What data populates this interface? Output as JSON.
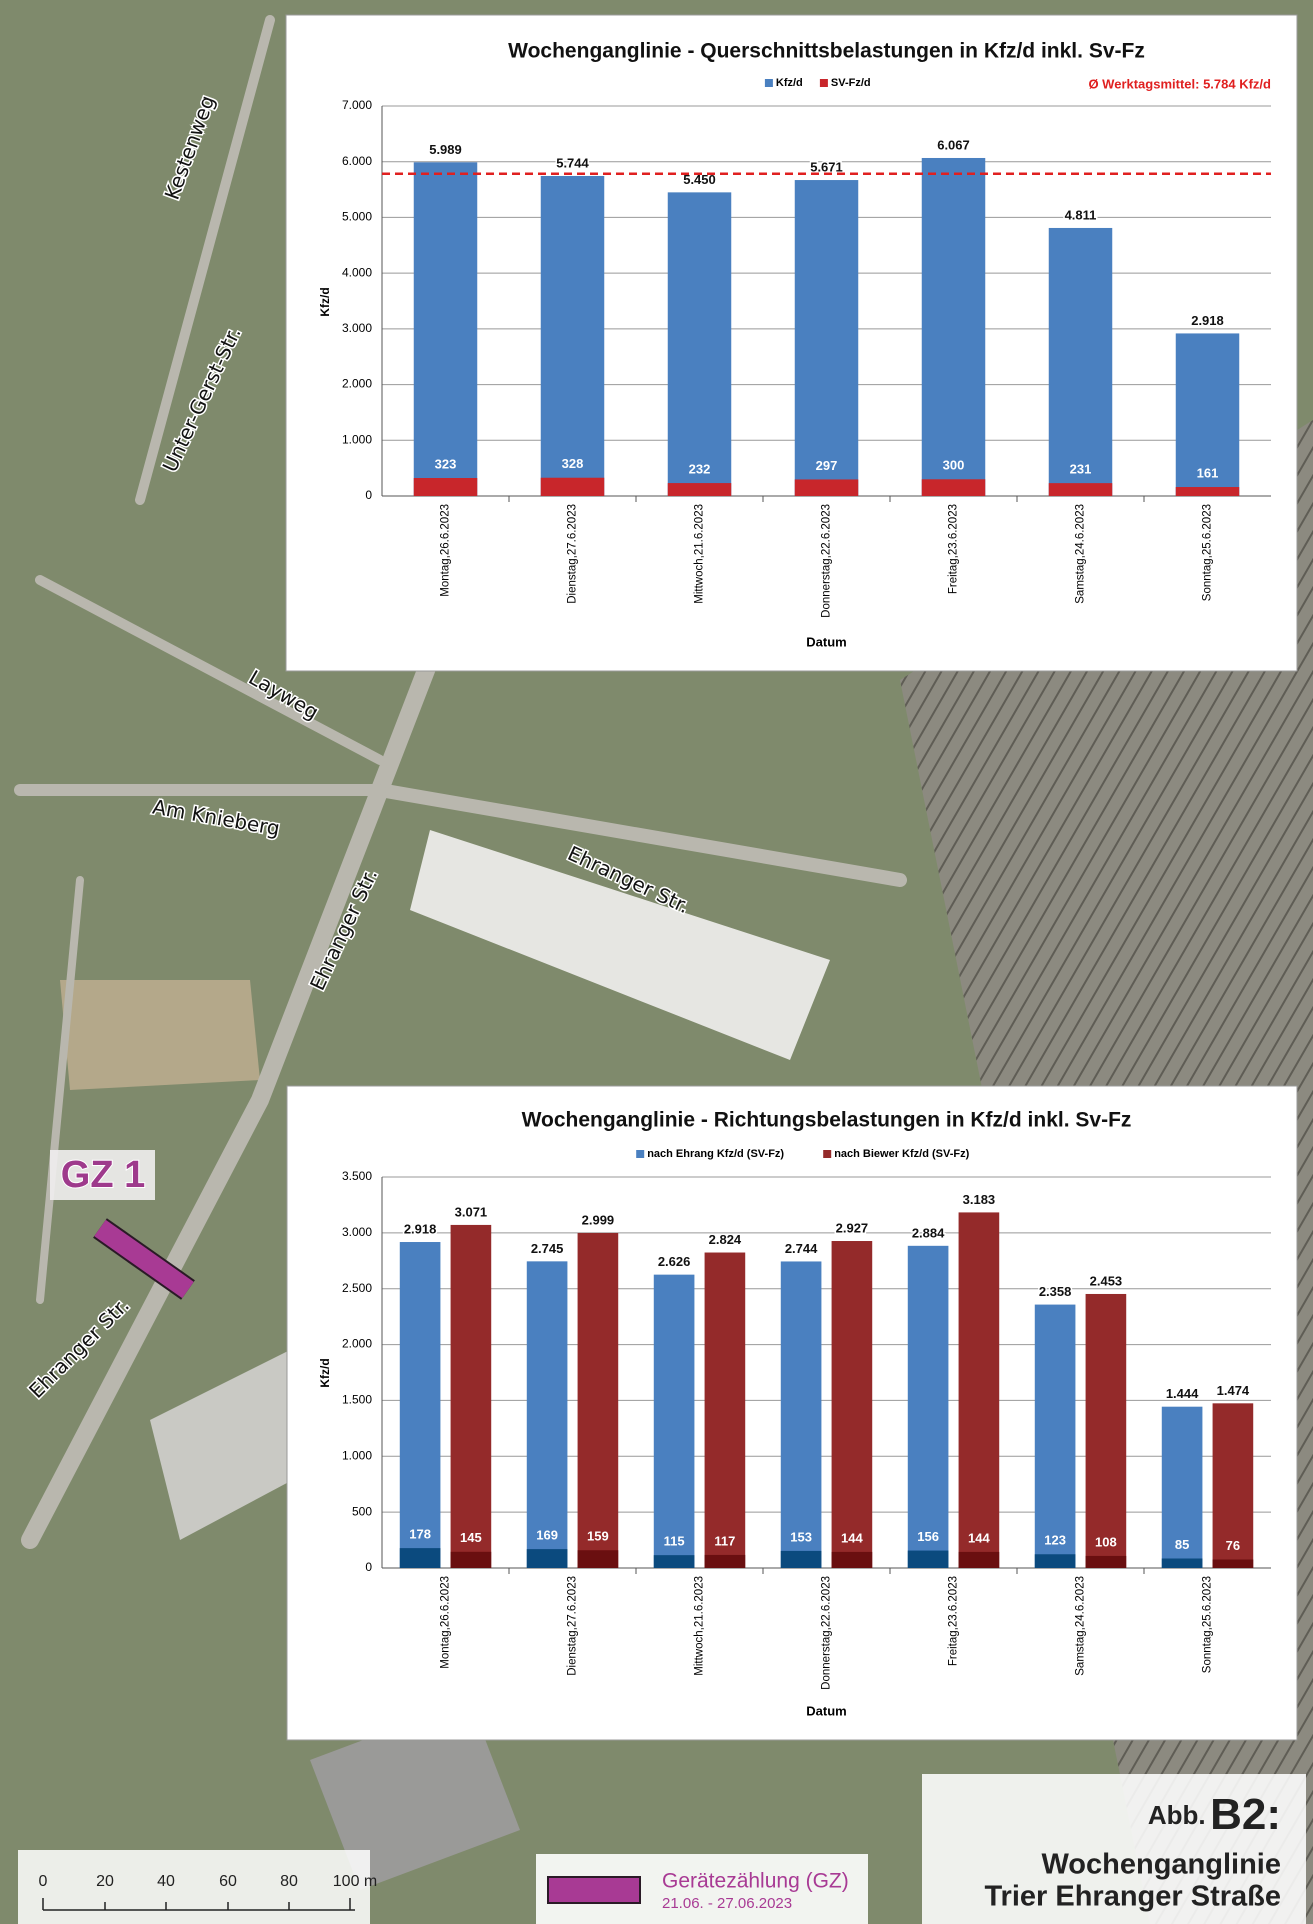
{
  "map": {
    "street_labels": [
      "Kestenweg",
      "Unter-Gerst-Str.",
      "Layweg",
      "Am Knieberg",
      "Ehranger Str.",
      "Ehranger Str.",
      "Ehranger Str."
    ],
    "gz_label": "GZ 1",
    "scale_labels": [
      "0",
      "20",
      "40",
      "60",
      "80",
      "100 m"
    ],
    "legend": {
      "label": "Gerätezählung (GZ)",
      "dates": "21.06. - 27.06.2023"
    },
    "figure": {
      "prefix": "Abb.",
      "number": "B2:",
      "title_lines": [
        "Wochenganglinie",
        "Trier Ehranger Straße"
      ]
    }
  },
  "chart_data": [
    {
      "type": "bar",
      "title": "Wochenganglinie - Querschnittsbelastungen in Kfz/d inkl. Sv-Fz",
      "y_label": "Kfz/d",
      "x_label": "Datum",
      "categories": [
        "Montag,26.6.2023",
        "Dienstag,27.6.2023",
        "Mittwoch,21.6.2023",
        "Donnerstag,22.6.2023",
        "Freitag,23.6.2023",
        "Samstag,24.6.2023",
        "Sonntag,25.6.2023"
      ],
      "series": [
        {
          "name": "Kfz/d",
          "color": "#4a80c0",
          "values": [
            5989,
            5744,
            5450,
            5671,
            6067,
            4811,
            2918
          ],
          "value_labels": [
            "5.989",
            "5.744",
            "5.450",
            "5.671",
            "6.067",
            "4.811",
            "2.918"
          ]
        },
        {
          "name": "SV-Fz/d",
          "color": "#c8262b",
          "overlay": true,
          "values": [
            323,
            328,
            232,
            297,
            300,
            231,
            161
          ]
        }
      ],
      "reference_line": {
        "value": 5784,
        "label": "Ø Werktagsmittel: 5.784 Kfz/d",
        "color": "#e02020"
      },
      "ylim": [
        0,
        7000
      ],
      "yticks": [
        0,
        {
          "value": 1000,
          "label": "1.000"
        },
        {
          "value": 2000,
          "label": "2.000"
        },
        {
          "value": 3000,
          "label": "3.000"
        },
        {
          "value": 4000,
          "label": "4.000"
        },
        {
          "value": 5000,
          "label": "5.000"
        },
        {
          "value": 6000,
          "label": "6.000"
        },
        {
          "value": 7000,
          "label": "7.000"
        }
      ],
      "grid": true
    },
    {
      "type": "bar",
      "title": "Wochenganglinie - Richtungsbelastungen in Kfz/d inkl. Sv-Fz",
      "y_label": "Kfz/d",
      "x_label": "Datum",
      "categories": [
        "Montag,26.6.2023",
        "Dienstag,27.6.2023",
        "Mittwoch,21.6.2023",
        "Donnerstag,22.6.2023",
        "Freitag,23.6.2023",
        "Samstag,24.6.2023",
        "Sonntag,25.6.2023"
      ],
      "series": [
        {
          "name": "nach Ehrang Kfz/d (SV-Fz)",
          "color": "#4a80c0",
          "values": [
            2918,
            2745,
            2626,
            2744,
            2884,
            2358,
            1444
          ],
          "value_labels": [
            "2.918",
            "2.745",
            "2.626",
            "2.744",
            "2.884",
            "2.358",
            "1.444"
          ],
          "sv_values": [
            178,
            169,
            115,
            153,
            156,
            123,
            85
          ],
          "sv_color": "#0b4a7e"
        },
        {
          "name": "nach Biewer  Kfz/d (SV-Fz)",
          "color": "#942a2a",
          "values": [
            3071,
            2999,
            2824,
            2927,
            3183,
            2453,
            1474
          ],
          "value_labels": [
            "3.071",
            "2.999",
            "2.824",
            "2.927",
            "3.183",
            "2.453",
            "1.474"
          ],
          "sv_values": [
            145,
            159,
            117,
            144,
            144,
            108,
            76
          ],
          "sv_color": "#6a0f10"
        }
      ],
      "ylim": [
        0,
        3500
      ],
      "yticks": [
        0,
        500,
        {
          "value": 1000,
          "label": "1.000"
        },
        {
          "value": 1500,
          "label": "1.500"
        },
        {
          "value": 2000,
          "label": "2.000"
        },
        {
          "value": 2500,
          "label": "2.500"
        },
        {
          "value": 3000,
          "label": "3.000"
        },
        {
          "value": 3500,
          "label": "3.500"
        }
      ],
      "grid": true
    }
  ]
}
